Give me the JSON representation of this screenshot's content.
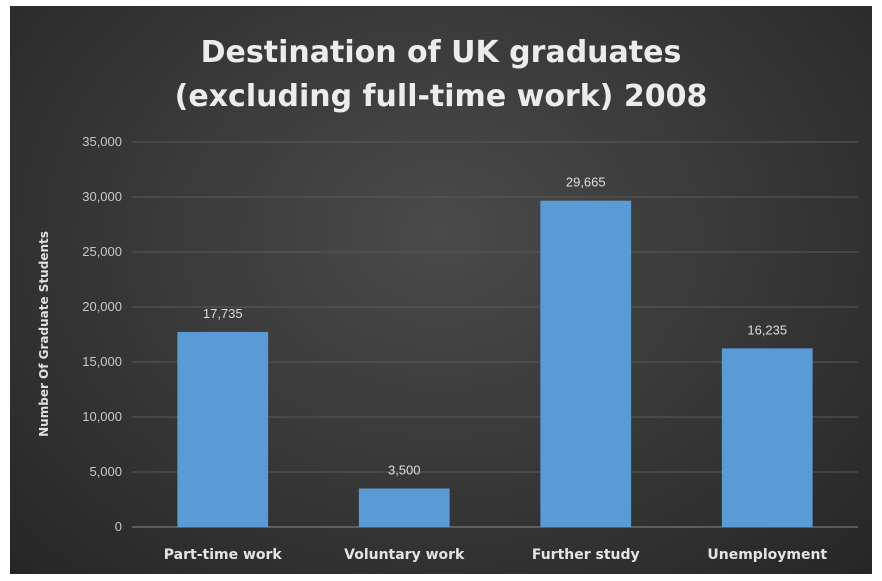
{
  "chart_data": {
    "type": "bar",
    "title_lines": [
      "Destination  of UK graduates",
      "(excluding  full-time  work) 2008"
    ],
    "xlabel": "",
    "ylabel": "Number Of Graduate Students",
    "categories": [
      "Part-time work",
      "Voluntary work",
      "Further study",
      "Unemployment"
    ],
    "values": [
      17735,
      3500,
      29665,
      16235
    ],
    "data_labels": [
      "17,735",
      "3,500",
      "29,665",
      "16,235"
    ],
    "ylim": [
      0,
      35000
    ],
    "yticks": [
      0,
      5000,
      10000,
      15000,
      20000,
      25000,
      30000,
      35000
    ],
    "ytick_labels": [
      "0",
      "5,000",
      "10,000",
      "15,000",
      "20,000",
      "25,000",
      "30,000",
      "35,000"
    ],
    "grid": true,
    "legend": "none",
    "colors": {
      "bar": "#5b9bd5",
      "background": "#3a3a3a"
    }
  }
}
